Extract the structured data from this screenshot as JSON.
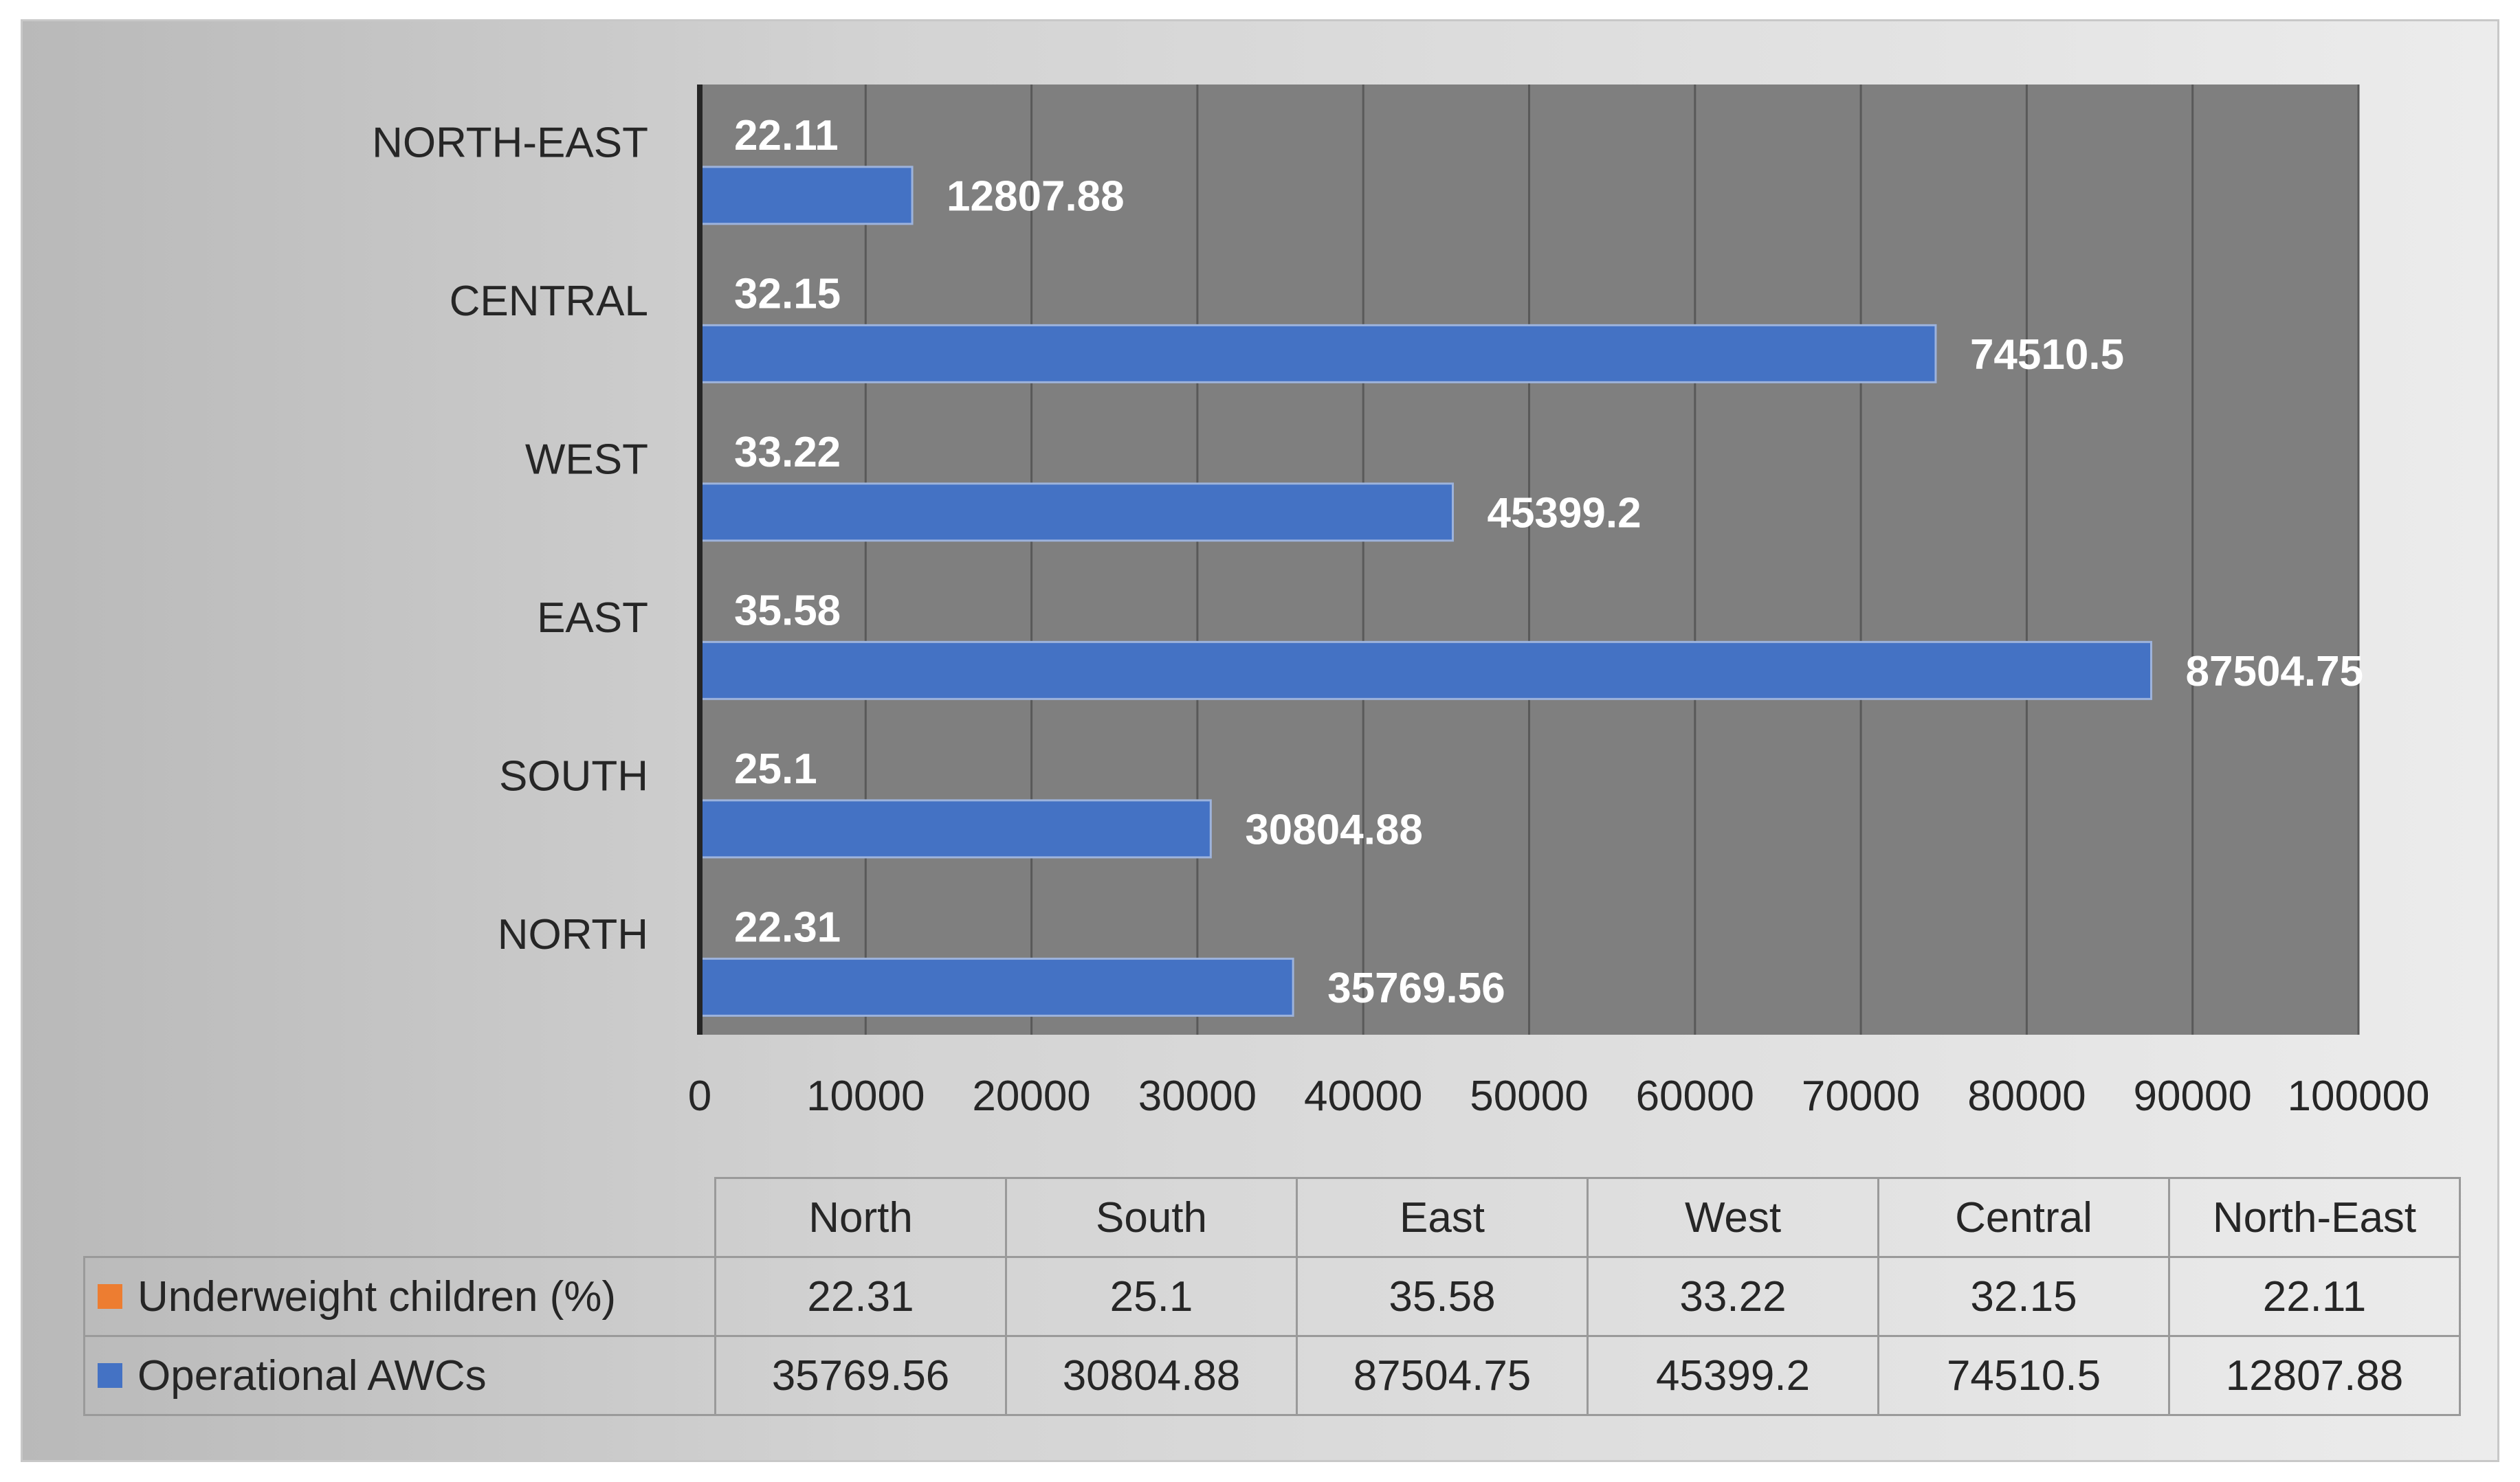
{
  "colors": {
    "operational": "#4472c4",
    "underweight": "#ed7d31",
    "plot_bg": "#7f7f7f",
    "gridline": "#595959",
    "axis": "#262626"
  },
  "chart_data": {
    "type": "bar",
    "orientation": "horizontal",
    "categories": [
      "NORTH",
      "SOUTH",
      "EAST",
      "WEST",
      "CENTRAL",
      "NORTH-EAST"
    ],
    "series": [
      {
        "name": "Underweight children (%)",
        "values": [
          22.31,
          25.1,
          35.58,
          33.22,
          32.15,
          22.11
        ]
      },
      {
        "name": "Operational AWCs",
        "values": [
          35769.56,
          30804.88,
          87504.75,
          45399.2,
          74510.5,
          12807.88
        ]
      }
    ],
    "xlim": [
      0,
      100000
    ],
    "xticks": [
      0,
      10000,
      20000,
      30000,
      40000,
      50000,
      60000,
      70000,
      80000,
      90000,
      100000
    ],
    "grid": true,
    "data_labels": {
      "underweight": [
        "22.31",
        "25.1",
        "35.58",
        "33.22",
        "32.15",
        "22.11"
      ],
      "operational": [
        "35769.56",
        "30804.88",
        "87504.75",
        "45399.2",
        "74510.5",
        "12807.88"
      ]
    },
    "data_table": {
      "columns": [
        "North",
        "South",
        "East",
        "West",
        "Central",
        "North-East"
      ],
      "rows": [
        {
          "label": "Underweight children (%)",
          "key": "orange-square",
          "values": [
            "22.31",
            "25.1",
            "35.58",
            "33.22",
            "32.15",
            "22.11"
          ]
        },
        {
          "label": "Operational AWCs",
          "key": "blue-square",
          "values": [
            "35769.56",
            "30804.88",
            "87504.75",
            "45399.2",
            "74510.5",
            "12807.88"
          ]
        }
      ]
    }
  }
}
